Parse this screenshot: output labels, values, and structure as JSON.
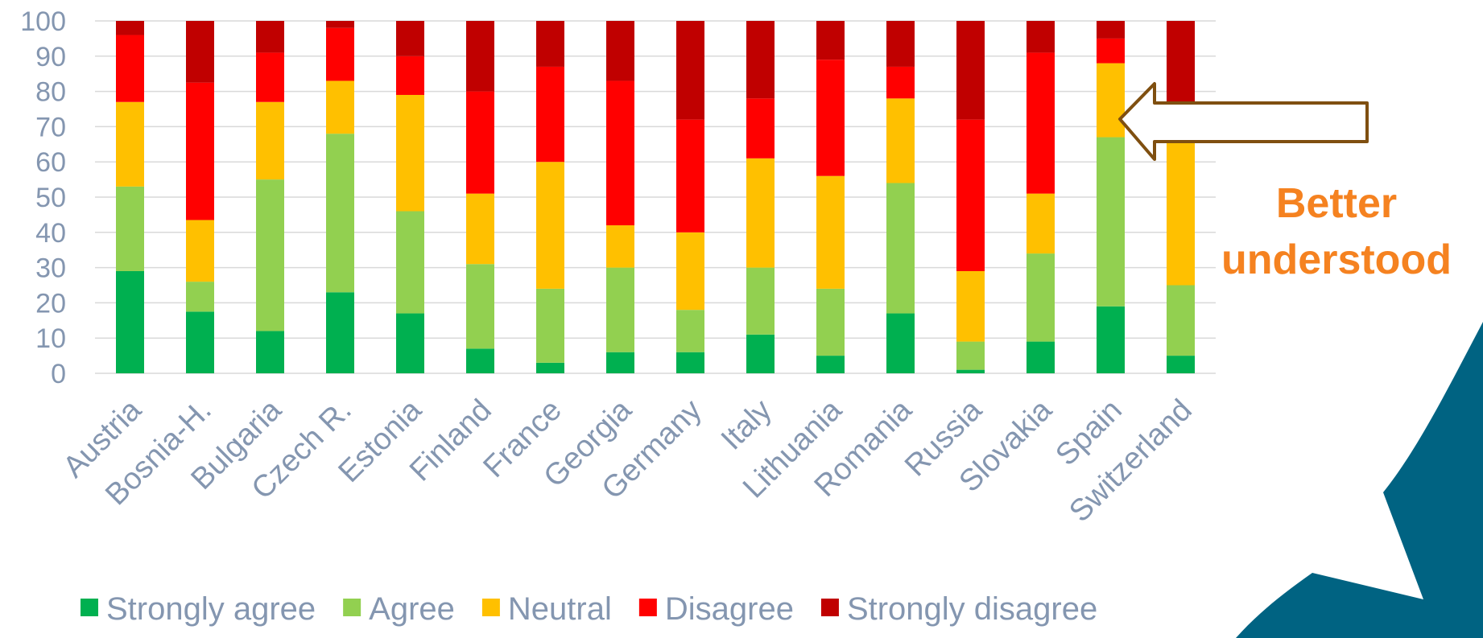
{
  "chart_data": {
    "type": "bar",
    "stacked": true,
    "categories": [
      "Austria",
      "Bosnia-H.",
      "Bulgaria",
      "Czech R.",
      "Estonia",
      "Finland",
      "France",
      "Georgia",
      "Germany",
      "Italy",
      "Lithuania",
      "Romania",
      "Russia",
      "Slovakia",
      "Spain",
      "Switzerland"
    ],
    "series": [
      {
        "name": "Strongly agree",
        "color": "#00b050",
        "values": [
          29,
          17.5,
          12,
          23,
          17,
          7,
          3,
          6,
          6,
          11,
          5,
          17,
          1,
          9,
          19,
          5
        ]
      },
      {
        "name": "Agree",
        "color": "#92d050",
        "values": [
          24,
          8.5,
          43,
          45,
          29,
          24,
          21,
          24,
          12,
          19,
          19,
          37,
          8,
          25,
          48,
          20
        ]
      },
      {
        "name": "Neutral",
        "color": "#ffc000",
        "values": [
          24,
          17.5,
          22,
          15,
          33,
          20,
          36,
          12,
          22,
          31,
          32,
          24,
          20,
          17,
          21,
          42
        ]
      },
      {
        "name": "Disagree",
        "color": "#ff0000",
        "values": [
          19,
          39,
          14,
          15,
          11,
          29,
          27,
          41,
          32,
          17,
          33,
          9,
          43,
          40,
          7,
          8
        ]
      },
      {
        "name": "Strongly disagree",
        "color": "#c00000",
        "values": [
          4,
          17.5,
          9,
          2,
          10,
          20,
          13,
          17,
          28,
          22,
          11,
          13,
          28,
          9,
          5,
          25
        ]
      }
    ],
    "yticks": [
      "0",
      "10",
      "20",
      "30",
      "40",
      "50",
      "60",
      "70",
      "80",
      "90",
      "100"
    ],
    "ylim": [
      0,
      100
    ],
    "grid": true,
    "legend_position": "bottom",
    "annotation": {
      "text_line1": "Better",
      "text_line2": "understood",
      "color": "#f58220",
      "arrow_color": "#7f4f10"
    }
  },
  "decoration_color": "#006382"
}
